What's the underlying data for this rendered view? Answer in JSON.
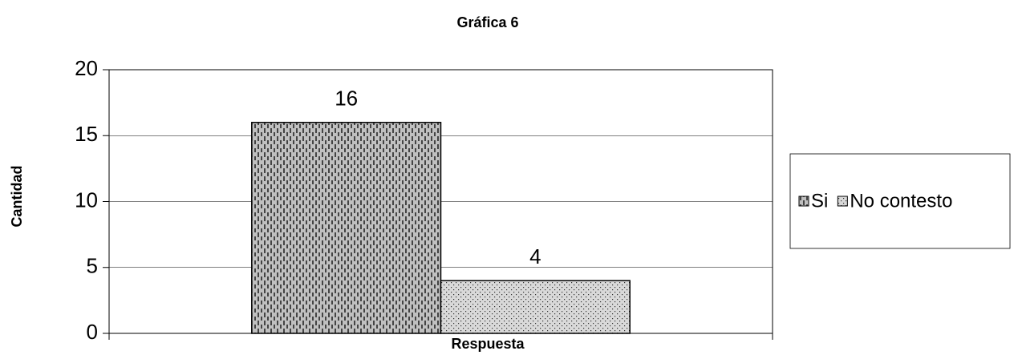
{
  "chart_data": {
    "type": "bar",
    "title": "Gráfica 6",
    "x_label": "Respuesta",
    "y_label": "Cantidad",
    "categories": [
      null
    ],
    "series": [
      {
        "name": "Si",
        "color": "#c0c0c0",
        "values": [
          16
        ]
      },
      {
        "name": "No contesto",
        "color": "#d9d9d9",
        "values": [
          4
        ]
      }
    ],
    "ylim": [
      0,
      20
    ],
    "yticks": [
      0,
      5,
      10,
      15,
      20
    ],
    "grid": true,
    "legend": "right"
  }
}
